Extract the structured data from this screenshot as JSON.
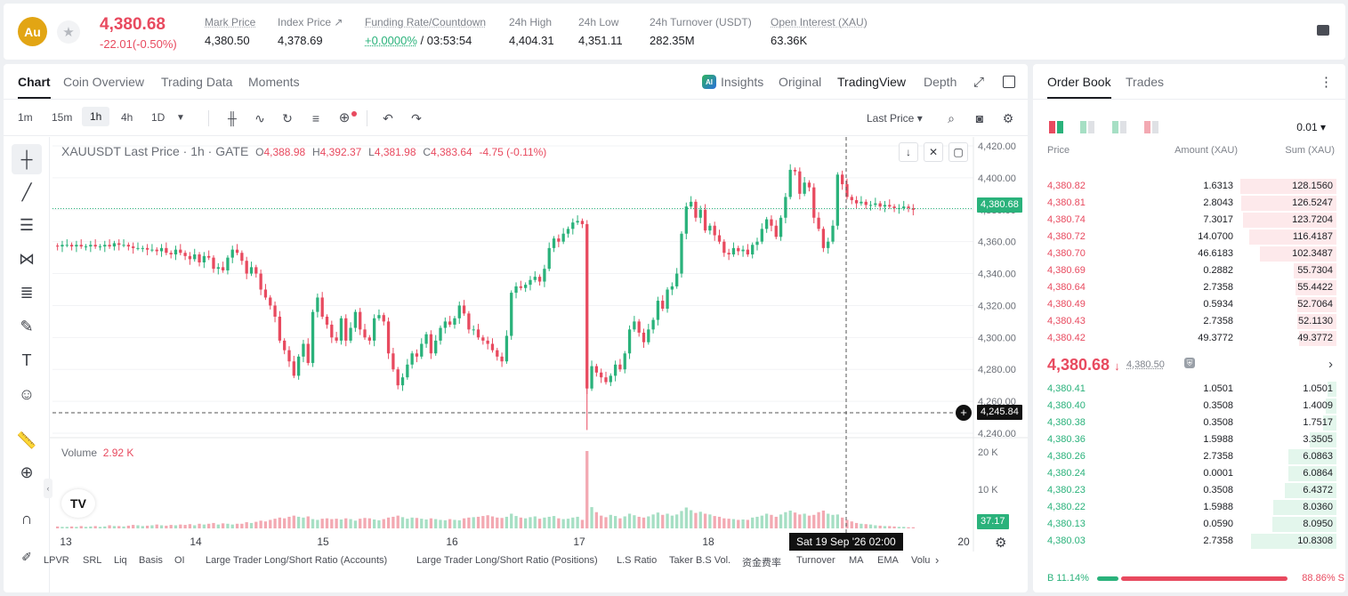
{
  "header": {
    "logo": "Au",
    "price": "4,380.68",
    "change": "-22.01(-0.50%)",
    "stats": [
      {
        "label": "Mark Price",
        "value": "4,380.50"
      },
      {
        "label": "Index Price ↗",
        "value": "4,378.69"
      },
      {
        "label": "Funding Rate/Countdown",
        "value_green": "+0.0000%",
        "value": " / 03:53:54"
      },
      {
        "label": "24h High",
        "value": "4,404.31"
      },
      {
        "label": "24h Low",
        "value": "4,351.11"
      },
      {
        "label": "24h Turnover (USDT)",
        "value": "282.35M"
      },
      {
        "label": "Open Interest (XAU)",
        "value": "63.36K"
      }
    ]
  },
  "chart_tabs": {
    "left": [
      "Chart",
      "Coin Overview",
      "Trading Data",
      "Moments"
    ],
    "insights": "Insights",
    "ai_badge": "AI",
    "right": [
      "Original",
      "TradingView",
      "Depth"
    ]
  },
  "toolbar": {
    "timeframes": [
      "1m",
      "15m",
      "1h",
      "4h",
      "1D"
    ],
    "price_type": "Last Price ▾"
  },
  "ohlc": {
    "symbol": "XAUUSDT Last Price · 1h · GATE",
    "o": "4,388.98",
    "h": "4,392.37",
    "l": "4,381.98",
    "c": "4,383.64",
    "chg": "-4.75 (-0.11%)"
  },
  "volume": {
    "label": "Volume",
    "value": "2.92 K"
  },
  "price_tags": {
    "last": "4,380.68",
    "cursor": "4,245.84",
    "volume_last": "37.17"
  },
  "crosshair_time": "Sat 19 Sep '26   02:00",
  "indicators": [
    "LPVR",
    "SRL",
    "Liq",
    "Basis",
    "OI",
    "Large Trader Long/Short Ratio (Accounts)",
    "Large Trader Long/Short Ratio (Positions)",
    "L.S Ratio",
    "Taker B.S Vol.",
    "资金费率",
    "Turnover",
    "MA",
    "EMA",
    "Volu"
  ],
  "chart_data": {
    "type": "candlestick",
    "title": "XAUUSDT Last Price · 1h · GATE",
    "y_ticks": [
      "4,420.00",
      "4,400.00",
      "4,380.00",
      "4,360.00",
      "4,340.00",
      "4,320.00",
      "4,300.00",
      "4,280.00",
      "4,260.00",
      "4,240.00"
    ],
    "vol_ticks": [
      "20 K",
      "10 K"
    ],
    "x_ticks": [
      "13",
      "14",
      "15",
      "16",
      "17",
      "18",
      "20"
    ],
    "ylim": [
      4240,
      4420
    ],
    "closes": [
      4357,
      4358,
      4358,
      4357,
      4358,
      4357,
      4357,
      4358,
      4357,
      4357,
      4358,
      4357,
      4359,
      4358,
      4358,
      4357,
      4356,
      4356,
      4356,
      4355,
      4355,
      4354,
      4356,
      4353,
      4352,
      4355,
      4353,
      4351,
      4349,
      4352,
      4347,
      4351,
      4350,
      4343,
      4344,
      4342,
      4350,
      4355,
      4353,
      4348,
      4340,
      4344,
      4340,
      4330,
      4325,
      4320,
      4313,
      4298,
      4292,
      4285,
      4276,
      4288,
      4296,
      4284,
      4316,
      4325,
      4313,
      4308,
      4300,
      4298,
      4312,
      4298,
      4306,
      4316,
      4305,
      4300,
      4298,
      4312,
      4314,
      4310,
      4290,
      4280,
      4270,
      4275,
      4283,
      4290,
      4288,
      4296,
      4302,
      4290,
      4298,
      4306,
      4310,
      4308,
      4312,
      4320,
      4315,
      4305,
      4305,
      4300,
      4298,
      4296,
      4292,
      4288,
      4285,
      4301,
      4328,
      4332,
      4331,
      4333,
      4336,
      4338,
      4335,
      4343,
      4356,
      4362,
      4360,
      4365,
      4368,
      4372,
      4373,
      4371,
      4268,
      4282,
      4278,
      4275,
      4272,
      4276,
      4283,
      4280,
      4290,
      4305,
      4310,
      4303,
      4297,
      4305,
      4311,
      4323,
      4318,
      4330,
      4332,
      4340,
      4365,
      4382,
      4385,
      4375,
      4380,
      4367,
      4370,
      4364,
      4360,
      4353,
      4352,
      4356,
      4354,
      4355,
      4352,
      4358,
      4360,
      4368,
      4374,
      4370,
      4363,
      4375,
      4388,
      4405,
      4404,
      4390,
      4397,
      4394,
      4375,
      4368,
      4356,
      4360,
      4370,
      4402,
      4396,
      4388,
      4386,
      4384,
      4385,
      4383,
      4383,
      4384,
      4382,
      4383,
      4382,
      4381,
      4381,
      4382,
      4381,
      4380
    ],
    "volumes": [
      0.5,
      0.4,
      0.4,
      0.5,
      0.4,
      0.6,
      0.4,
      0.5,
      0.6,
      0.4,
      0.5,
      0.8,
      0.6,
      0.6,
      0.5,
      0.7,
      0.9,
      0.8,
      0.6,
      0.7,
      0.8,
      1.0,
      0.8,
      0.7,
      0.9,
      0.8,
      1.0,
      0.9,
      1.1,
      0.8,
      1.2,
      1.0,
      1.2,
      1.4,
      1.0,
      1.3,
      1.2,
      1.0,
      1.2,
      1.2,
      1.6,
      1.4,
      1.7,
      2.0,
      1.8,
      2.2,
      2.5,
      2.8,
      2.6,
      3.0,
      3.3,
      3.0,
      2.8,
      3.1,
      2.4,
      2.2,
      2.5,
      2.6,
      2.4,
      2.5,
      2.3,
      2.6,
      2.4,
      2.0,
      2.5,
      2.7,
      2.6,
      2.3,
      2.1,
      2.4,
      2.8,
      3.0,
      3.3,
      2.9,
      2.5,
      2.8,
      2.7,
      2.5,
      2.3,
      2.6,
      2.4,
      2.2,
      2.1,
      2.4,
      2.2,
      2.1,
      2.6,
      2.8,
      2.9,
      3.0,
      3.2,
      3.4,
      3.1,
      2.8,
      2.7,
      3.0,
      3.8,
      3.2,
      2.8,
      2.6,
      2.9,
      3.1,
      2.5,
      2.8,
      3.0,
      3.2,
      2.6,
      2.4,
      2.5,
      2.8,
      3.0,
      2.2,
      20.0,
      5.5,
      4.2,
      3.3,
      2.9,
      3.5,
      3.2,
      2.6,
      3.1,
      3.8,
      3.4,
      3.0,
      2.8,
      3.1,
      3.6,
      4.1,
      3.5,
      3.8,
      3.3,
      3.6,
      4.5,
      5.4,
      4.7,
      4.0,
      4.3,
      3.8,
      3.6,
      3.2,
      3.0,
      2.6,
      2.5,
      2.4,
      2.2,
      2.3,
      2.2,
      2.8,
      3.0,
      3.3,
      3.8,
      3.5,
      3.0,
      3.6,
      4.2,
      4.6,
      4.1,
      3.6,
      3.8,
      3.3,
      3.5,
      4.2,
      4.6,
      3.8,
      3.5,
      3.6,
      2.8,
      2.2,
      1.8,
      1.4,
      1.2,
      1.1,
      1.0,
      0.8,
      0.7,
      0.6,
      0.6,
      0.5,
      0.4,
      0.4,
      0.3,
      0.3
    ]
  },
  "orderbook": {
    "tabs": [
      "Order Book",
      "Trades"
    ],
    "precision": "0.01",
    "headers": {
      "price": "Price",
      "amount": "Amount (XAU)",
      "sum": "Sum (XAU)"
    },
    "asks": [
      {
        "price": "4,380.82",
        "amount": "1.6313",
        "sum": "128.1560",
        "depth": 1.0
      },
      {
        "price": "4,380.81",
        "amount": "2.8043",
        "sum": "126.5247",
        "depth": 0.99
      },
      {
        "price": "4,380.74",
        "amount": "7.3017",
        "sum": "123.7204",
        "depth": 0.97
      },
      {
        "price": "4,380.72",
        "amount": "14.0700",
        "sum": "116.4187",
        "depth": 0.91
      },
      {
        "price": "4,380.70",
        "amount": "46.6183",
        "sum": "102.3487",
        "depth": 0.8
      },
      {
        "price": "4,380.69",
        "amount": "0.2882",
        "sum": "55.7304",
        "depth": 0.44
      },
      {
        "price": "4,380.64",
        "amount": "2.7358",
        "sum": "55.4422",
        "depth": 0.43
      },
      {
        "price": "4,380.49",
        "amount": "0.5934",
        "sum": "52.7064",
        "depth": 0.41
      },
      {
        "price": "4,380.43",
        "amount": "2.7358",
        "sum": "52.1130",
        "depth": 0.41
      },
      {
        "price": "4,380.42",
        "amount": "49.3772",
        "sum": "49.3772",
        "depth": 0.39
      }
    ],
    "mid": {
      "price": "4,380.68",
      "arrow": "↓",
      "mark": "4,380.50"
    },
    "bids": [
      {
        "price": "4,380.41",
        "amount": "1.0501",
        "sum": "1.0501",
        "depth": 0.1
      },
      {
        "price": "4,380.40",
        "amount": "0.3508",
        "sum": "1.4009",
        "depth": 0.13
      },
      {
        "price": "4,380.38",
        "amount": "0.3508",
        "sum": "1.7517",
        "depth": 0.16
      },
      {
        "price": "4,380.36",
        "amount": "1.5988",
        "sum": "3.3505",
        "depth": 0.31
      },
      {
        "price": "4,380.26",
        "amount": "2.7358",
        "sum": "6.0863",
        "depth": 0.56
      },
      {
        "price": "4,380.24",
        "amount": "0.0001",
        "sum": "6.0864",
        "depth": 0.56
      },
      {
        "price": "4,380.23",
        "amount": "0.3508",
        "sum": "6.4372",
        "depth": 0.6
      },
      {
        "price": "4,380.22",
        "amount": "1.5988",
        "sum": "8.0360",
        "depth": 0.74
      },
      {
        "price": "4,380.13",
        "amount": "0.0590",
        "sum": "8.0950",
        "depth": 0.75
      },
      {
        "price": "4,380.03",
        "amount": "2.7358",
        "sum": "10.8308",
        "depth": 1.0
      }
    ],
    "ratio": {
      "buy": "B 11.14%",
      "sell": "88.86% S",
      "buy_frac": 0.1114
    }
  },
  "colors": {
    "up": "#2ab27b",
    "down": "#e84a5f",
    "up_vol": "#a6dfc4",
    "down_vol": "#f3a9b2",
    "accent": "#e2a514"
  }
}
